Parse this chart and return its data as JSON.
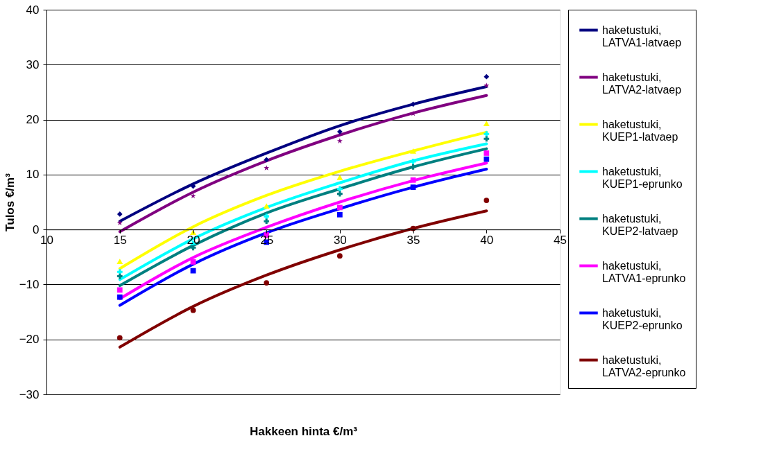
{
  "chart_data": {
    "type": "scatter",
    "xlabel": "Hakkeen hinta €/m³",
    "ylabel": "Tulos €/m³",
    "x": [
      15,
      20,
      25,
      30,
      35,
      40
    ],
    "xlim": [
      10,
      45
    ],
    "xticks": [
      10,
      15,
      20,
      25,
      30,
      35,
      40,
      45
    ],
    "ylim": [
      -30,
      40
    ],
    "yticks": [
      -30,
      -20,
      -10,
      0,
      10,
      20,
      30,
      40
    ],
    "grid": "y",
    "legend": "right",
    "series": [
      {
        "marker": "diamond",
        "color": "#000080",
        "values": [
          2.8,
          7.9,
          12.7,
          17.8,
          22.8,
          27.8
        ]
      },
      {
        "marker": "star",
        "color": "#800080",
        "values": [
          1.2,
          6.1,
          11.2,
          16.1,
          21.1,
          26.2
        ]
      },
      {
        "marker": "triangle",
        "color": "#ffff00",
        "values": [
          -5.8,
          -0.5,
          4.3,
          9.5,
          14.3,
          19.3
        ]
      },
      {
        "marker": "cross",
        "color": "#00ffff",
        "values": [
          -7.7,
          -2.6,
          2.4,
          7.4,
          12.4,
          17.4
        ]
      },
      {
        "marker": "cross",
        "color": "#008080",
        "values": [
          -8.5,
          -3.3,
          1.5,
          6.5,
          11.4,
          16.5
        ]
      },
      {
        "marker": "square",
        "color": "#ff00ff",
        "values": [
          -11.0,
          -5.9,
          -1.0,
          4.0,
          9.0,
          13.9
        ]
      },
      {
        "marker": "square",
        "color": "#0000ff",
        "values": [
          -12.3,
          -7.5,
          -2.3,
          2.7,
          7.7,
          12.8
        ]
      },
      {
        "marker": "circle",
        "color": "#800000",
        "values": [
          -19.7,
          -14.7,
          -9.7,
          -4.8,
          0.2,
          5.3
        ]
      },
      {
        "type": "line",
        "name": "haketustuki, LATVA1-latvaep",
        "color": "#000080",
        "x": [
          15,
          20,
          25,
          30,
          35,
          40
        ],
        "values": [
          1.5,
          8.3,
          13.9,
          18.9,
          22.8,
          26.0
        ]
      },
      {
        "type": "line",
        "name": "haketustuki, LATVA2-latvaep",
        "color": "#800080",
        "x": [
          15,
          20,
          25,
          30,
          35,
          40
        ],
        "values": [
          -0.4,
          6.8,
          12.5,
          17.2,
          21.2,
          24.4
        ]
      },
      {
        "type": "line",
        "name": "haketustuki, KUEP1-latvaep",
        "color": "#ffff00",
        "x": [
          15,
          20,
          25,
          30,
          35,
          40
        ],
        "values": [
          -7.1,
          0.5,
          6.2,
          10.6,
          14.3,
          17.7
        ]
      },
      {
        "type": "line",
        "name": "haketustuki, KUEP1-eprunko",
        "color": "#00ffff",
        "x": [
          15,
          20,
          25,
          30,
          35,
          40
        ],
        "values": [
          -9.1,
          -1.7,
          4.0,
          8.5,
          12.5,
          15.6
        ]
      },
      {
        "type": "line",
        "name": "haketustuki, KUEP2-latvaep",
        "color": "#008080",
        "x": [
          15,
          20,
          25,
          30,
          35,
          40
        ],
        "values": [
          -10.2,
          -2.9,
          3.0,
          7.4,
          11.4,
          14.7
        ]
      },
      {
        "type": "line",
        "name": "haketustuki, LATVA1-eprunko",
        "color": "#ff00ff",
        "x": [
          15,
          20,
          25,
          30,
          35,
          40
        ],
        "values": [
          -12.6,
          -5.1,
          0.4,
          5.0,
          8.9,
          12.1
        ]
      },
      {
        "type": "line",
        "name": "haketustuki, KUEP2-eprunko",
        "color": "#0000ff",
        "x": [
          15,
          20,
          25,
          30,
          35,
          40
        ],
        "values": [
          -13.8,
          -6.3,
          -0.6,
          3.8,
          7.7,
          11.0
        ]
      },
      {
        "type": "line",
        "name": "haketustuki, LATVA2-eprunko",
        "color": "#800000",
        "x": [
          15,
          20,
          25,
          30,
          35,
          40
        ],
        "values": [
          -21.4,
          -14.0,
          -8.3,
          -3.7,
          0.2,
          3.4
        ]
      }
    ]
  }
}
